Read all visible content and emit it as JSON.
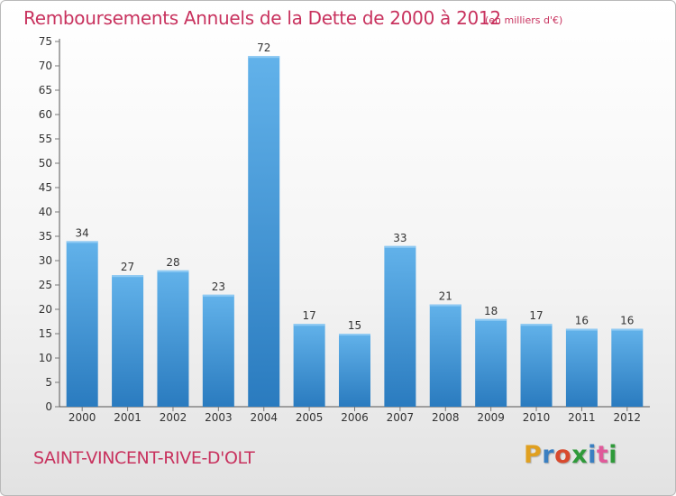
{
  "title": "Remboursements Annuels de la Dette de 2000 à 2012",
  "subtitle": "(en milliers d'€)",
  "city": "SAINT-VINCENT-RIVE-D'OLT",
  "logo": {
    "text": "Proxiti",
    "letter_colors": [
      "#e0a020",
      "#3a7fc1",
      "#d84a2e",
      "#2f9a3a",
      "#3a7fc1",
      "#e05a9a",
      "#2f9a3a"
    ]
  },
  "colors": {
    "bar_light": "#62b2ea",
    "bar_dark": "#2a7bbf",
    "accent_text": "#c8325e",
    "axis": "#555555",
    "grid_tick": "#777777"
  },
  "chart_data": {
    "type": "bar",
    "title": "Remboursements Annuels de la Dette de 2000 à 2012",
    "subtitle": "(en milliers d'€)",
    "xlabel": "",
    "ylabel": "",
    "categories": [
      "2000",
      "2001",
      "2002",
      "2003",
      "2004",
      "2005",
      "2006",
      "2007",
      "2008",
      "2009",
      "2010",
      "2011",
      "2012"
    ],
    "values": [
      34,
      27,
      28,
      23,
      72,
      17,
      15,
      33,
      21,
      18,
      17,
      16,
      16
    ],
    "ylim": [
      0,
      75
    ],
    "yticks": [
      0,
      5,
      10,
      15,
      20,
      25,
      30,
      35,
      40,
      45,
      50,
      55,
      60,
      65,
      70,
      75
    ],
    "grid": false,
    "legend": "none"
  }
}
